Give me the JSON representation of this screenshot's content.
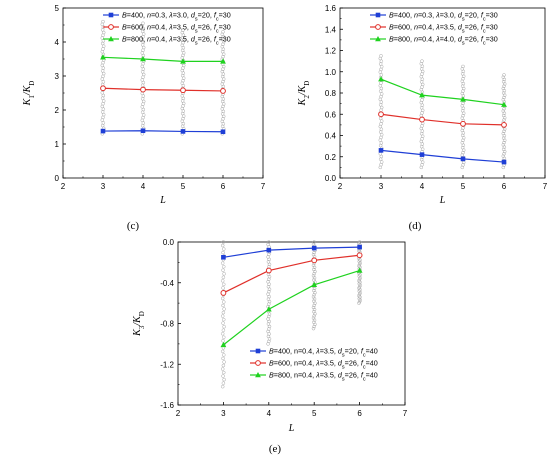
{
  "chart_data": [
    {
      "panel": "(c)",
      "type": "line",
      "xlabel": "L",
      "ylabel": "K₁/K_D",
      "ylabel_main": "K",
      "ylabel_sub": "1",
      "ylabel_den": "/K",
      "ylabel_den_sub": "D",
      "xlim": [
        2,
        7
      ],
      "ylim": [
        0,
        5
      ],
      "xticks": [
        "2",
        "3",
        "4",
        "5",
        "6",
        "7"
      ],
      "yticks": [
        "0",
        "1",
        "2",
        "3",
        "4",
        "5"
      ],
      "x": [
        3,
        4,
        5,
        6
      ],
      "scatter_x": [
        3,
        4,
        5,
        6
      ],
      "scatter_range": [
        [
          1.3,
          4.6
        ],
        [
          1.3,
          4.55
        ],
        [
          1.3,
          4.35
        ],
        [
          1.3,
          4.3
        ]
      ],
      "grid": false,
      "legend_position": "top-right",
      "series": [
        {
          "name": "B=400, n=0.3, λ=3.0, ds=20, fc=30",
          "color": "#1f3fd6",
          "marker": "square",
          "values": [
            1.38,
            1.39,
            1.37,
            1.36
          ]
        },
        {
          "name": "B=600, n=0.4, λ=3.5, ds=26, fc=30",
          "color": "#e0302a",
          "marker": "circle-open",
          "values": [
            2.64,
            2.6,
            2.58,
            2.56
          ]
        },
        {
          "name": "B=800, n=0.4, λ=3.5, ds=26, fc=30",
          "color": "#1fd21f",
          "marker": "triangle",
          "values": [
            3.55,
            3.5,
            3.43,
            3.43
          ]
        }
      ]
    },
    {
      "panel": "(d)",
      "type": "line",
      "xlabel": "L",
      "ylabel": "K₂/K_D",
      "ylabel_main": "K",
      "ylabel_sub": "2",
      "ylabel_den": "/K",
      "ylabel_den_sub": "D",
      "xlim": [
        2,
        7
      ],
      "ylim": [
        0,
        1.6
      ],
      "xticks": [
        "2",
        "3",
        "4",
        "5",
        "6",
        "7"
      ],
      "yticks": [
        "0.0",
        "0.2",
        "0.4",
        "0.6",
        "0.8",
        "1.0",
        "1.2",
        "1.4",
        "1.6"
      ],
      "x": [
        3,
        4,
        5,
        6
      ],
      "scatter_x": [
        3,
        4,
        5,
        6
      ],
      "scatter_range": [
        [
          0.1,
          1.15
        ],
        [
          0.1,
          1.1
        ],
        [
          0.1,
          1.05
        ],
        [
          0.1,
          0.97
        ]
      ],
      "grid": false,
      "legend_position": "top-right",
      "series": [
        {
          "name": "B=400, n=0.3, λ=3.0, ds=20, fc=30",
          "color": "#1f3fd6",
          "marker": "square",
          "values": [
            0.26,
            0.22,
            0.18,
            0.15
          ]
        },
        {
          "name": "B=600, n=0.4, λ=3.5, ds=26, fc=30",
          "color": "#e0302a",
          "marker": "circle-open",
          "values": [
            0.6,
            0.55,
            0.51,
            0.5
          ]
        },
        {
          "name": "B=800, n=0.4, λ=4.0, ds=26, fc=30",
          "color": "#1fd21f",
          "marker": "triangle",
          "values": [
            0.93,
            0.78,
            0.74,
            0.69
          ]
        }
      ]
    },
    {
      "panel": "(e)",
      "type": "line",
      "xlabel": "L",
      "ylabel": "K₃/K_D",
      "ylabel_main": "K",
      "ylabel_sub": "3",
      "ylabel_den": "/K",
      "ylabel_den_sub": "D",
      "xlim": [
        2,
        7
      ],
      "ylim": [
        -1.6,
        0
      ],
      "xticks": [
        "2",
        "3",
        "4",
        "5",
        "6",
        "7"
      ],
      "yticks": [
        "-1.6",
        "-1.2",
        "-0.8",
        "-0.4",
        "0.0"
      ],
      "x": [
        3,
        4,
        5,
        6
      ],
      "scatter_x": [
        3,
        4,
        5,
        6
      ],
      "scatter_range": [
        [
          -1.42,
          0
        ],
        [
          -1.0,
          0
        ],
        [
          -0.85,
          0
        ],
        [
          -0.6,
          0
        ]
      ],
      "grid": false,
      "legend_position": "bottom-right",
      "series": [
        {
          "name": "B=400, n=0.4, λ=3.5, ds=20, fc=40",
          "color": "#1f3fd6",
          "marker": "square",
          "values": [
            -0.15,
            -0.08,
            -0.06,
            -0.05
          ]
        },
        {
          "name": "B=600, n=0.4, λ=3.5, ds=26, fc=40",
          "color": "#e0302a",
          "marker": "circle-open",
          "values": [
            -0.5,
            -0.28,
            -0.18,
            -0.13
          ]
        },
        {
          "name": "B=800, n=0.4, λ=3.5, ds=26, fc=40",
          "color": "#1fd21f",
          "marker": "triangle",
          "values": [
            -1.01,
            -0.66,
            -0.42,
            -0.28
          ]
        }
      ]
    }
  ],
  "legend": {
    "c": [
      {
        "B": "B",
        "B_val": "=400, ",
        "n": "n",
        "n_val": "=0.3, ",
        "lam": "λ",
        "lam_val": "=3.0, ",
        "d": "d",
        "d_sub": "s",
        "d_val": "=20, ",
        "f": "f",
        "f_sub": "c",
        "f_val": "=30"
      },
      {
        "B": "B",
        "B_val": "=600, ",
        "n": "n",
        "n_val": "=0.4, ",
        "lam": "λ",
        "lam_val": "=3.5, ",
        "d": "d",
        "d_sub": "s",
        "d_val": "=26, ",
        "f": "f",
        "f_sub": "c",
        "f_val": "=30"
      },
      {
        "B": "B",
        "B_val": "=800, ",
        "n": "n",
        "n_val": "=0.4, ",
        "lam": "λ",
        "lam_val": "=3.5, ",
        "d": "d",
        "d_sub": "s",
        "d_val": "=26, ",
        "f": "f",
        "f_sub": "c",
        "f_val": "=30"
      }
    ],
    "d": [
      {
        "B": "B",
        "B_val": "=400, ",
        "n": "n",
        "n_val": "=0.3, ",
        "lam": "λ",
        "lam_val": "=3.0, ",
        "d": "d",
        "d_sub": "s",
        "d_val": "=20, ",
        "f": "f",
        "f_sub": "c",
        "f_val": "=30"
      },
      {
        "B": "B",
        "B_val": "=600, ",
        "n": "n",
        "n_val": "=0.4, ",
        "lam": "λ",
        "lam_val": "=3.5, ",
        "d": "d",
        "d_sub": "s",
        "d_val": "=26, ",
        "f": "f",
        "f_sub": "c",
        "f_val": "=30"
      },
      {
        "B": "B",
        "B_val": "=800, ",
        "n": "n",
        "n_val": "=0.4, ",
        "lam": "λ",
        "lam_val": "=4.0, ",
        "d": "d",
        "d_sub": "s",
        "d_val": "=26, ",
        "f": "f",
        "f_sub": "c",
        "f_val": "=30"
      }
    ],
    "e": [
      {
        "B": "B",
        "B_val": "=400, n=0.4, ",
        "n": "",
        "n_val": "",
        "lam": "λ",
        "lam_val": "=3.5, ",
        "d": "d",
        "d_sub": "s",
        "d_val": "=20, ",
        "f": "f",
        "f_sub": "c",
        "f_val": "=40"
      },
      {
        "B": "B",
        "B_val": "=600, n=0.4, ",
        "n": "",
        "n_val": "",
        "lam": "λ",
        "lam_val": "=3.5, ",
        "d": "d",
        "d_sub": "s",
        "d_val": "=26, ",
        "f": "f",
        "f_sub": "c",
        "f_val": "=40"
      },
      {
        "B": "B",
        "B_val": "=800, n=0.4, ",
        "n": "",
        "n_val": "",
        "lam": "λ",
        "lam_val": "=3.5, ",
        "d": "d",
        "d_sub": "s",
        "d_val": "=26, ",
        "f": "f",
        "f_sub": "c",
        "f_val": "=40"
      }
    ]
  },
  "colors": {
    "blue": "#1f3fd6",
    "red": "#e0302a",
    "green": "#1fd21f",
    "scatter": "#a8a8a8"
  }
}
